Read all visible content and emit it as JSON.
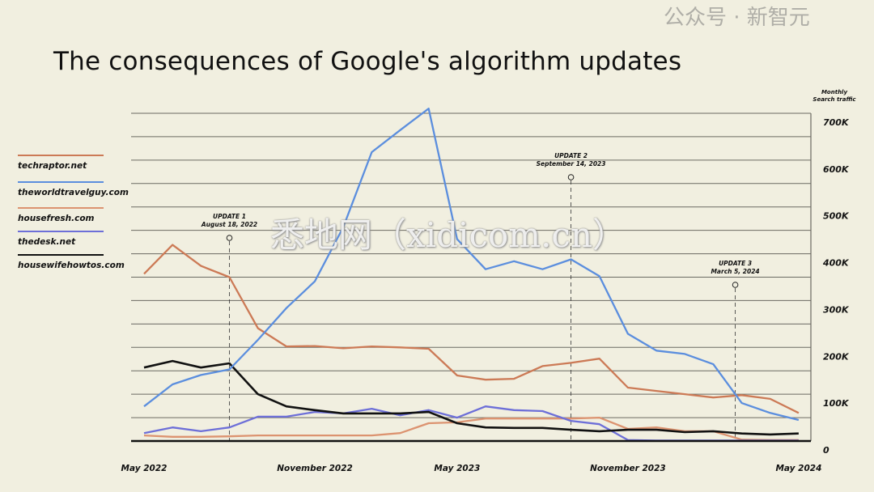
{
  "chart_data": {
    "type": "line",
    "title": "The consequences of Google's algorithm updates",
    "ylabel": "Monthly Search traffic",
    "ylim": [
      0,
      700000
    ],
    "y_ticks": [
      {
        "value": 700000,
        "label": "700K"
      },
      {
        "value": 600000,
        "label": "600K"
      },
      {
        "value": 500000,
        "label": "500K"
      },
      {
        "value": 400000,
        "label": "400K"
      },
      {
        "value": 300000,
        "label": "300K"
      },
      {
        "value": 200000,
        "label": "200K"
      },
      {
        "value": 100000,
        "label": "100K"
      },
      {
        "value": 0,
        "label": "0"
      }
    ],
    "gridline_step": 50000,
    "grid": true,
    "n_points": 24,
    "x_ticks": [
      {
        "index": 0,
        "label": "May 2022"
      },
      {
        "index": 6,
        "label": "November 2022"
      },
      {
        "index": 11,
        "label": "May 2023"
      },
      {
        "index": 17,
        "label": "November 2023"
      },
      {
        "index": 23,
        "label": "May 2024"
      }
    ],
    "legend_position": "left",
    "series": [
      {
        "name": "techraptor.net",
        "color": "#cc7a56",
        "values": [
          357000,
          419000,
          374000,
          350000,
          241000,
          202000,
          203000,
          198000,
          202000,
          200000,
          197000,
          140000,
          131000,
          133000,
          160000,
          167000,
          176000,
          114000,
          107000,
          100000,
          93000,
          98000,
          90000,
          60000
        ]
      },
      {
        "name": "theworldtravelguy.com",
        "color": "#5b8ede",
        "values": [
          74000,
          121000,
          141000,
          153000,
          216000,
          284000,
          341000,
          457000,
          617000,
          664000,
          710000,
          431000,
          367000,
          384000,
          367000,
          388000,
          352000,
          229000,
          193000,
          186000,
          164000,
          81000,
          60000,
          45000
        ]
      },
      {
        "name": "housefresh.com",
        "color": "#dc9370",
        "values": [
          12000,
          9000,
          9000,
          10000,
          12000,
          12000,
          12000,
          12000,
          12000,
          17000,
          38000,
          40000,
          48000,
          48000,
          48000,
          48000,
          50000,
          26000,
          29000,
          21000,
          21000,
          3000,
          2000,
          2000
        ]
      },
      {
        "name": "thedesk.net",
        "color": "#6d6fd8",
        "values": [
          17000,
          29000,
          21000,
          29000,
          52000,
          52000,
          62000,
          59000,
          69000,
          55000,
          66000,
          50000,
          74000,
          66000,
          64000,
          43000,
          36000,
          2000,
          1000,
          1000,
          1000,
          1000,
          1000,
          1000
        ]
      },
      {
        "name": "housewifehowtos.com",
        "color": "#111111",
        "values": [
          157000,
          171000,
          157000,
          166000,
          100000,
          74000,
          66000,
          59000,
          59000,
          59000,
          62000,
          38000,
          29000,
          28000,
          28000,
          24000,
          21000,
          24000,
          24000,
          19000,
          21000,
          16000,
          14000,
          16000
        ]
      }
    ],
    "annotations": [
      {
        "index": 3,
        "title": "UPDATE 1",
        "date": "August 18, 2022"
      },
      {
        "index": 15,
        "title": "UPDATE 2",
        "date": "September 14, 2023"
      },
      {
        "index": 21,
        "title": "UPDATE 3",
        "date": "March 5, 2024"
      }
    ]
  },
  "watermarks": {
    "site": "悉地网（xidicom.cn）",
    "wechat": "公众号 · 新智元"
  }
}
